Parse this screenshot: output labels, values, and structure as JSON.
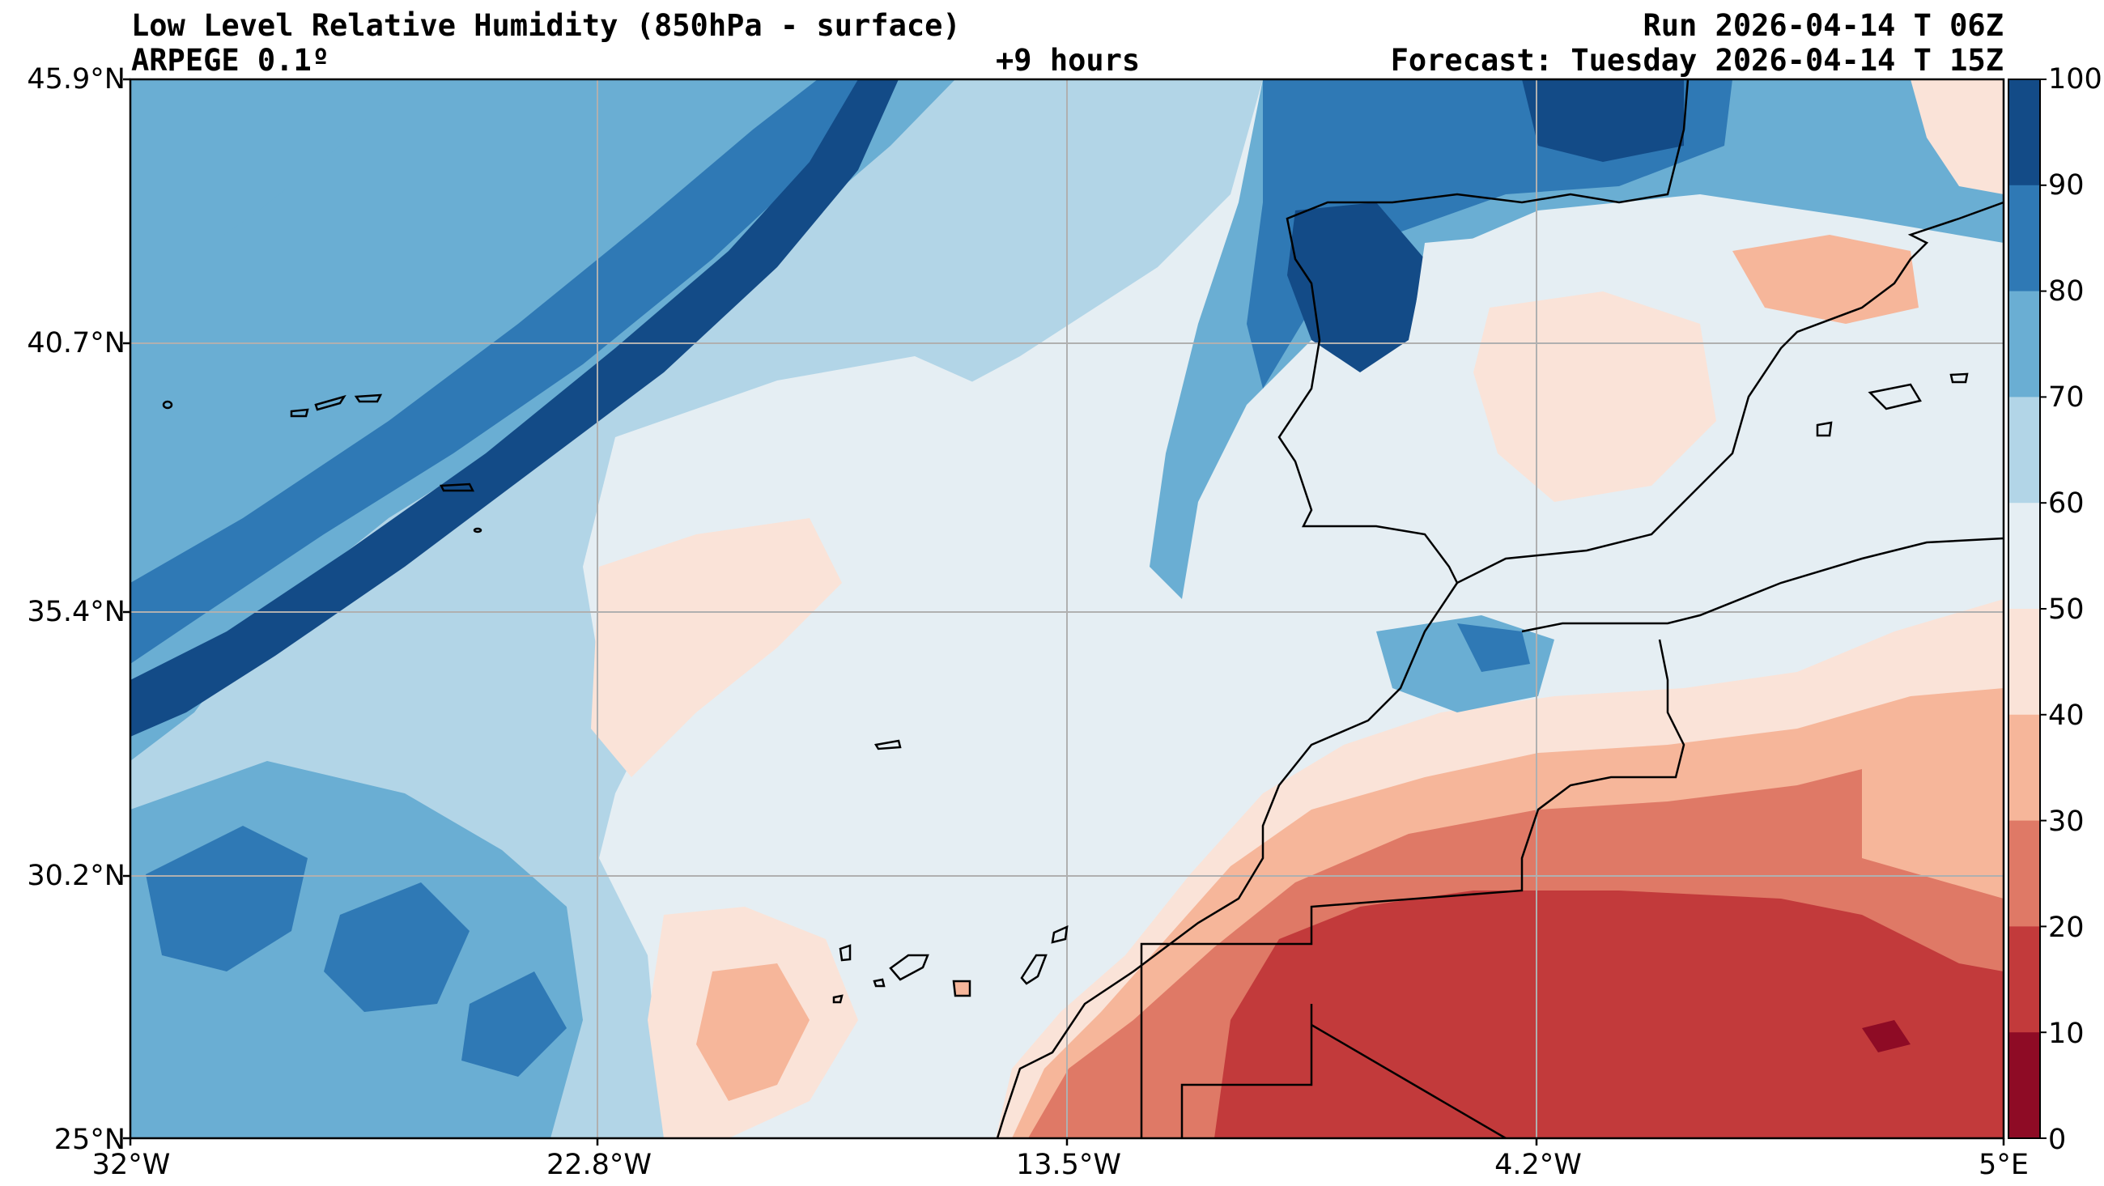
{
  "header": {
    "title": "Low Level Relative Humidity (850hPa - surface)",
    "model": "ARPEGE 0.1º",
    "lead": "+9 hours",
    "run": "Run 2026-04-14 T 06Z",
    "forecast": "Forecast: Tuesday 2026-04-14 T 15Z"
  },
  "map": {
    "lat_range": [
      25.0,
      45.9
    ],
    "lon_range": [
      -32.0,
      5.0
    ],
    "lat_labels": [
      "45.9°N",
      "40.7°N",
      "35.4°N",
      "30.2°N",
      "25°N"
    ],
    "lon_labels": [
      "32°W",
      "22.8°W",
      "13.5°W",
      "4.2°W",
      "5°E"
    ],
    "gridlines": true
  },
  "colorbar": {
    "ticks": [
      "100",
      "90",
      "80",
      "70",
      "60",
      "50",
      "40",
      "30",
      "20",
      "10",
      "0"
    ],
    "levels": [
      {
        "from": 90,
        "to": 100,
        "color": "#134b87"
      },
      {
        "from": 80,
        "to": 90,
        "color": "#2f79b5"
      },
      {
        "from": 70,
        "to": 80,
        "color": "#6aaed3"
      },
      {
        "from": 60,
        "to": 70,
        "color": "#b2d5e7"
      },
      {
        "from": 50,
        "to": 60,
        "color": "#e5eef3"
      },
      {
        "from": 40,
        "to": 50,
        "color": "#fae3d8"
      },
      {
        "from": 30,
        "to": 40,
        "color": "#f6b69a"
      },
      {
        "from": 20,
        "to": 30,
        "color": "#df7966"
      },
      {
        "from": 10,
        "to": 20,
        "color": "#c23a3b"
      },
      {
        "from": 0,
        "to": 10,
        "color": "#8e0b25"
      }
    ]
  }
}
